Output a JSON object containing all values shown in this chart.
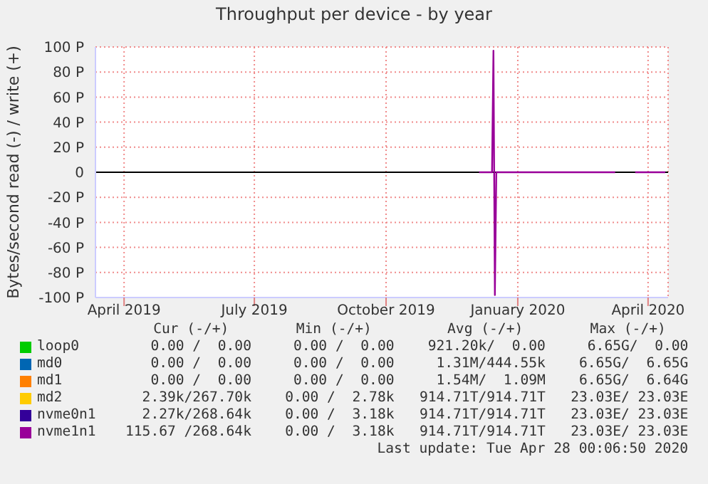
{
  "chart_data": {
    "type": "line",
    "title": "Throughput per device - by year",
    "ylabel": "Bytes/second read (-) / write (+)",
    "x": [
      "2019-12-20",
      "2019-12-29",
      "2019-12-30",
      "2019-12-31",
      "2020-01-01",
      "2020-02-15",
      "2020-03-24",
      "2020-03-25",
      "2020-04-07",
      "2020-04-28"
    ],
    "xlim": [
      "2019-03-27",
      "2020-04-30"
    ],
    "xticks": [
      {
        "value": "2019-04-16",
        "label": "April 2019"
      },
      {
        "value": "2019-07-16",
        "label": "July 2019"
      },
      {
        "value": "2019-10-16",
        "label": "October 2019"
      },
      {
        "value": "2020-01-16",
        "label": "January 2020"
      },
      {
        "value": "2020-04-16",
        "label": "April 2020"
      }
    ],
    "ylim": [
      -100,
      100
    ],
    "yticks": [
      {
        "value": -100,
        "label": "-100 P"
      },
      {
        "value": -80,
        "label": "-80 P"
      },
      {
        "value": -60,
        "label": "-60 P"
      },
      {
        "value": -40,
        "label": "-40 P"
      },
      {
        "value": -20,
        "label": "-20 P"
      },
      0,
      {
        "value": 20,
        "label": "20 P"
      },
      {
        "value": 40,
        "label": "40 P"
      },
      {
        "value": 60,
        "label": "60 P"
      },
      {
        "value": 80,
        "label": "80 P"
      },
      {
        "value": 100,
        "label": "100 P"
      }
    ],
    "series": [
      {
        "name": "loop0",
        "color": "#00cc00",
        "values": [
          null,
          null,
          null,
          null,
          null,
          null,
          null,
          null,
          null,
          null
        ]
      },
      {
        "name": "md0",
        "color": "#0066b3",
        "values": [
          null,
          null,
          null,
          null,
          null,
          null,
          null,
          null,
          null,
          null
        ]
      },
      {
        "name": "md1",
        "color": "#ff8000",
        "values": [
          null,
          null,
          null,
          null,
          null,
          null,
          null,
          null,
          null,
          null
        ]
      },
      {
        "name": "md2",
        "color": "#ffcc00",
        "values": [
          null,
          null,
          null,
          null,
          null,
          null,
          null,
          null,
          null,
          null
        ]
      },
      {
        "name": "nvme0n1",
        "color": "#330099",
        "values": [
          null,
          null,
          null,
          null,
          null,
          null,
          null,
          null,
          null,
          null
        ]
      },
      {
        "name": "nvme1n1",
        "color": "#990099",
        "values": [
          0,
          0,
          97,
          -98,
          0,
          0,
          0,
          null,
          0,
          0
        ]
      }
    ],
    "grid": true,
    "legend": "bottom",
    "marker": "none",
    "line_style": "solid",
    "annotations": [
      "    Cur (-/+)        Min (-/+)         Avg (-/+)        Max (-/+)",
      "   0.00 /  0.00     0.00 /  0.00    921.20k/  0.00     6.65G/  0.00",
      "   0.00 /  0.00     0.00 /  0.00     1.31M/444.55k    6.65G/  6.65G",
      "   0.00 /  0.00     0.00 /  0.00     1.54M/  1.09M    6.65G/  6.64G",
      "  2.39k/267.70k    0.00 /  2.78k   914.71T/914.71T   23.03E/ 23.03E",
      "  2.27k/268.64k    0.00 /  3.18k   914.71T/914.71T   23.03E/ 23.03E",
      "115.67 /268.64k    0.00 /  3.18k   914.71T/914.71T   23.03E/ 23.03E",
      "Last update: Tue Apr 28 00:06:50 2020"
    ]
  }
}
